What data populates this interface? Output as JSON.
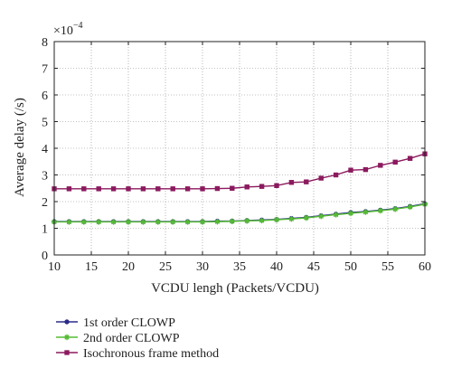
{
  "chart_data": {
    "type": "line",
    "title": "",
    "xlabel": "VCDU lengh (Packets/VCDU)",
    "ylabel": "Average delay (/s)",
    "y_exponent_base": "×10",
    "y_exponent_power": "−4",
    "xlim": [
      10,
      60
    ],
    "ylim": [
      0,
      8
    ],
    "xticks": [
      10,
      15,
      20,
      25,
      30,
      35,
      40,
      45,
      50,
      55,
      60
    ],
    "yticks": [
      0,
      1,
      2,
      3,
      4,
      5,
      6,
      7,
      8
    ],
    "grid": "dotted",
    "legend_position": "below plot",
    "x": [
      10,
      12,
      14,
      16,
      18,
      20,
      22,
      24,
      26,
      28,
      30,
      32,
      34,
      36,
      38,
      40,
      42,
      44,
      46,
      48,
      50,
      52,
      54,
      56,
      58,
      60
    ],
    "series": [
      {
        "name": "1st order CLOWP",
        "color": "#2b2b8a",
        "marker": "circle",
        "values": [
          1.25,
          1.25,
          1.25,
          1.25,
          1.25,
          1.25,
          1.25,
          1.25,
          1.25,
          1.25,
          1.25,
          1.27,
          1.27,
          1.29,
          1.31,
          1.33,
          1.37,
          1.41,
          1.47,
          1.53,
          1.59,
          1.63,
          1.68,
          1.74,
          1.82,
          1.92
        ]
      },
      {
        "name": "2nd order CLOWP",
        "color": "#55bb33",
        "marker": "star",
        "values": [
          1.24,
          1.24,
          1.24,
          1.24,
          1.24,
          1.24,
          1.24,
          1.24,
          1.24,
          1.24,
          1.24,
          1.25,
          1.26,
          1.28,
          1.29,
          1.32,
          1.35,
          1.39,
          1.45,
          1.51,
          1.56,
          1.61,
          1.66,
          1.72,
          1.8,
          1.9
        ]
      },
      {
        "name": "Isochronous frame method",
        "color": "#8b1a5e",
        "marker": "square",
        "values": [
          2.48,
          2.48,
          2.48,
          2.48,
          2.48,
          2.48,
          2.48,
          2.48,
          2.48,
          2.48,
          2.48,
          2.49,
          2.5,
          2.55,
          2.57,
          2.6,
          2.72,
          2.74,
          2.88,
          3.0,
          3.18,
          3.2,
          3.36,
          3.48,
          3.62,
          3.79
        ]
      }
    ]
  }
}
